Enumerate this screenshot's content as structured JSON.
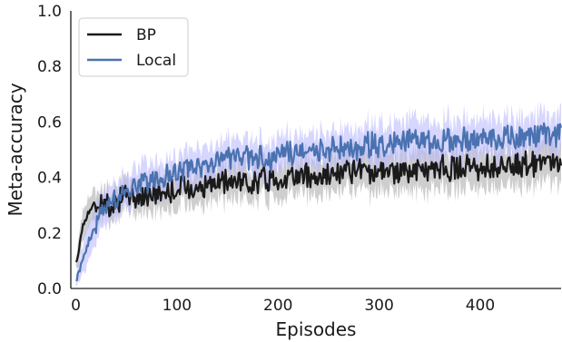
{
  "chart_data": {
    "type": "line",
    "xlabel": "Episodes",
    "ylabel": "Meta-accuracy",
    "xlim": [
      -5,
      480
    ],
    "ylim": [
      0,
      1.0
    ],
    "x_ticks": [
      0,
      100,
      200,
      300,
      400
    ],
    "y_ticks": [
      0.0,
      0.2,
      0.4,
      0.6,
      0.8,
      1.0
    ],
    "grid": false,
    "legend_position": "top-left",
    "band": "shaded variability band around each series",
    "series": [
      {
        "name": "BP",
        "color": "#1a1a1a",
        "band_color": "#a6a6a6",
        "x": [
          0,
          2,
          5,
          10,
          15,
          20,
          25,
          30,
          40,
          50,
          60,
          75,
          90,
          100,
          125,
          150,
          175,
          200,
          250,
          300,
          350,
          400,
          450,
          480
        ],
        "y": [
          0.08,
          0.12,
          0.2,
          0.26,
          0.29,
          0.3,
          0.31,
          0.3,
          0.32,
          0.33,
          0.33,
          0.34,
          0.35,
          0.36,
          0.37,
          0.38,
          0.39,
          0.4,
          0.41,
          0.42,
          0.43,
          0.44,
          0.45,
          0.45
        ],
        "spread": [
          0.02,
          0.04,
          0.05,
          0.05,
          0.05,
          0.05,
          0.05,
          0.05,
          0.05,
          0.05,
          0.05,
          0.06,
          0.06,
          0.06,
          0.06,
          0.06,
          0.06,
          0.06,
          0.06,
          0.07,
          0.07,
          0.07,
          0.07,
          0.07
        ]
      },
      {
        "name": "Local",
        "color": "#4a72b0",
        "band_color": "#b4b4ff",
        "x": [
          0,
          2,
          5,
          10,
          15,
          20,
          25,
          30,
          40,
          50,
          60,
          75,
          90,
          100,
          125,
          150,
          175,
          200,
          250,
          300,
          350,
          400,
          450,
          480
        ],
        "y": [
          0.04,
          0.05,
          0.08,
          0.14,
          0.19,
          0.23,
          0.27,
          0.3,
          0.33,
          0.35,
          0.37,
          0.39,
          0.41,
          0.42,
          0.44,
          0.46,
          0.47,
          0.48,
          0.5,
          0.52,
          0.53,
          0.54,
          0.55,
          0.56
        ],
        "spread": [
          0.02,
          0.03,
          0.05,
          0.06,
          0.06,
          0.06,
          0.06,
          0.06,
          0.06,
          0.06,
          0.06,
          0.06,
          0.06,
          0.06,
          0.06,
          0.06,
          0.06,
          0.06,
          0.06,
          0.07,
          0.07,
          0.07,
          0.07,
          0.07
        ]
      }
    ]
  }
}
